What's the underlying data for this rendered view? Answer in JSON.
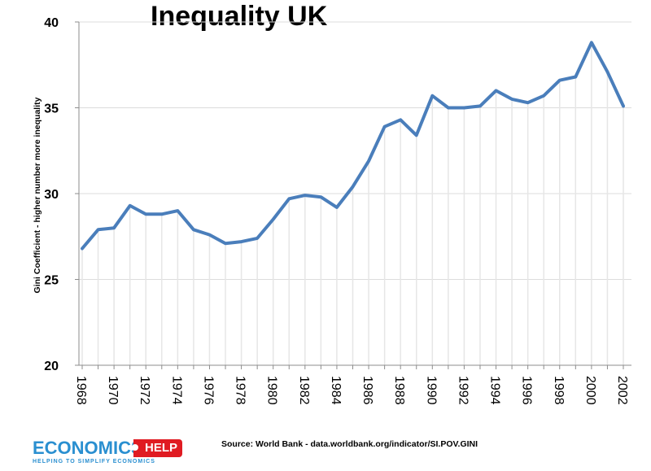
{
  "chart_data": {
    "type": "line",
    "title": "Inequality UK",
    "xlabel": "",
    "ylabel": "Gini Coefficient - higher number more inequality",
    "ylim": [
      20,
      40
    ],
    "yticks": [
      "20",
      "25",
      "30",
      "35",
      "40"
    ],
    "xtick_labels": [
      "1968",
      "1970",
      "1972",
      "1974",
      "1976",
      "1978",
      "1980",
      "1982",
      "1984",
      "1986",
      "1988",
      "1990",
      "1992",
      "1994",
      "1996",
      "1998",
      "2000",
      "2002"
    ],
    "x": [
      1968,
      1969,
      1970,
      1971,
      1972,
      1973,
      1974,
      1975,
      1976,
      1977,
      1978,
      1979,
      1980,
      1981,
      1982,
      1983,
      1984,
      1985,
      1986,
      1987,
      1988,
      1989,
      1990,
      1991,
      1992,
      1993,
      1994,
      1995,
      1996,
      1997,
      1998,
      1999,
      2000,
      2001,
      2002
    ],
    "values": [
      26.8,
      27.9,
      28.0,
      29.3,
      28.8,
      28.8,
      29.0,
      27.9,
      27.6,
      27.1,
      27.2,
      27.4,
      28.5,
      29.7,
      29.9,
      29.8,
      29.2,
      30.4,
      31.9,
      33.9,
      34.3,
      33.4,
      35.7,
      35.0,
      35.0,
      35.1,
      36.0,
      35.5,
      35.3,
      35.7,
      36.6,
      36.8,
      38.8,
      37.1,
      35.1
    ],
    "line_color": "#4a7ebb",
    "grid": "horizontal",
    "source": "Source: World Bank - data.worldbank.org/indicator/SI.POV.GINI"
  },
  "logo": {
    "name": "ECONOMICS",
    "badge": "HELP",
    "tagline": "HELPING TO SIMPLIFY ECONOMICS"
  }
}
